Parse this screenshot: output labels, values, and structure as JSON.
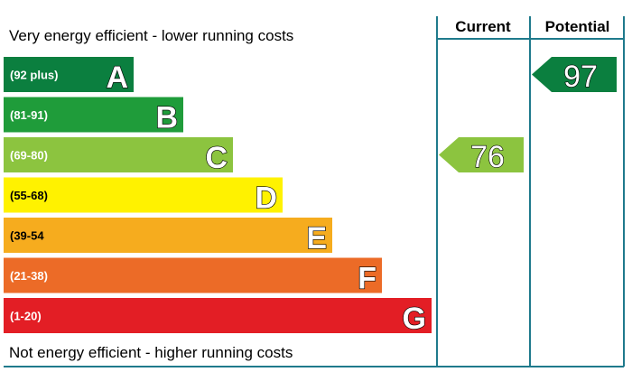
{
  "top_caption": "Very energy efficient - lower running costs",
  "bottom_caption": "Not energy efficient - higher running costs",
  "columns": {
    "current": "Current",
    "potential": "Potential"
  },
  "bands": [
    {
      "range": "(92 plus)",
      "letter": "A",
      "color": "#0b7f3f"
    },
    {
      "range": "(81-91)",
      "letter": "B",
      "color": "#1f9c3a"
    },
    {
      "range": "(69-80)",
      "letter": "C",
      "color": "#8cc43f"
    },
    {
      "range": "(55-68)",
      "letter": "D",
      "color": "#fff200"
    },
    {
      "range": "(39-54",
      "letter": "E",
      "color": "#f6ac1e"
    },
    {
      "range": "(21-38)",
      "letter": "F",
      "color": "#ec6b27"
    },
    {
      "range": "(1-20)",
      "letter": "G",
      "color": "#e31e25"
    }
  ],
  "current": {
    "value": "76",
    "band": "C",
    "color": "#8cc43f"
  },
  "potential": {
    "value": "97",
    "band": "A",
    "color": "#0b7f3f"
  },
  "line_color": "#1f7a8c"
}
